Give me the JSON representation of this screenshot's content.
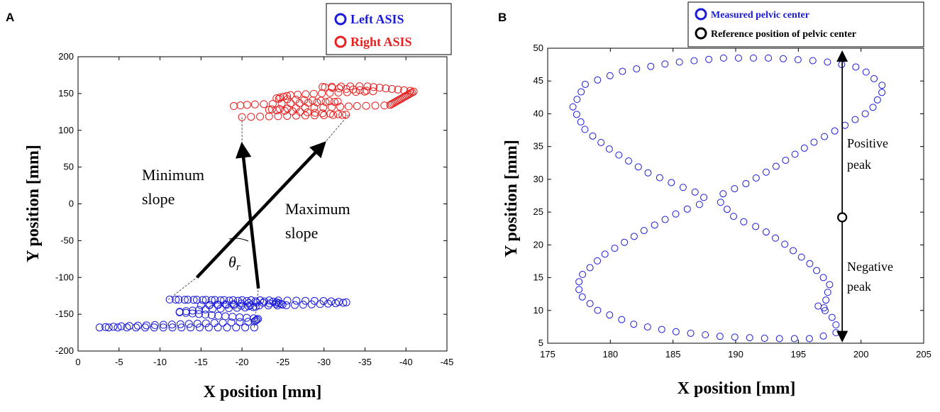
{
  "chart_data": [
    {
      "panel": "A",
      "type": "scatter",
      "xlabel": "X position [mm]",
      "ylabel": "Y position [mm]",
      "xlim": [
        0,
        -45
      ],
      "ylim": [
        -200,
        200
      ],
      "xticks": [
        0,
        -5,
        -10,
        -15,
        -20,
        -25,
        -30,
        -35,
        -40,
        -45
      ],
      "yticks": [
        -200,
        -150,
        -100,
        -50,
        0,
        50,
        100,
        150,
        200
      ],
      "legend": {
        "position": "top-right",
        "entries": [
          {
            "label": "Left ASIS",
            "color": "#1a1adb"
          },
          {
            "label": "Right ASIS",
            "color": "#e82020"
          }
        ]
      },
      "series": [
        {
          "name": "Left ASIS",
          "color": "#1a1adb",
          "path_points": [
            [
              -21.5,
              -168
            ],
            [
              -12,
              -168
            ],
            [
              -6,
              -168
            ],
            [
              -2.5,
              -168
            ],
            [
              -6,
              -166
            ],
            [
              -14,
              -163
            ],
            [
              -21.5,
              -160
            ],
            [
              -22,
              -156
            ],
            [
              -17,
              -152
            ],
            [
              -12,
              -147
            ],
            [
              -16,
              -143
            ],
            [
              -22,
              -140
            ],
            [
              -18,
              -137
            ],
            [
              -15,
              -138
            ],
            [
              -19,
              -136
            ],
            [
              -22,
              -134
            ],
            [
              -25,
              -137
            ],
            [
              -24,
              -133
            ],
            [
              -17,
              -131
            ],
            [
              -11,
              -130
            ],
            [
              -21,
              -131
            ],
            [
              -30,
              -132
            ],
            [
              -33,
              -134
            ],
            [
              -30,
              -136
            ],
            [
              -25,
              -138
            ],
            [
              -21,
              -138
            ]
          ],
          "point_count": 130
        },
        {
          "name": "Right ASIS",
          "color": "#e82020",
          "path_points": [
            [
              -20,
              118
            ],
            [
              -27,
              120
            ],
            [
              -33,
              121
            ],
            [
              -30,
              123
            ],
            [
              -26,
              126
            ],
            [
              -23,
              128
            ],
            [
              -26,
              130
            ],
            [
              -30,
              131
            ],
            [
              -34,
              133
            ],
            [
              -38,
              134
            ],
            [
              -41,
              153
            ],
            [
              -35,
              160
            ],
            [
              -29.5,
              159
            ],
            [
              -33,
              156
            ],
            [
              -36,
              153
            ],
            [
              -31,
              151
            ],
            [
              -26,
              148
            ],
            [
              -24,
              143
            ],
            [
              -28,
              141
            ],
            [
              -32,
              139
            ],
            [
              -27,
              137
            ],
            [
              -21,
              135
            ],
            [
              -19,
              133
            ]
          ],
          "point_count": 110
        }
      ],
      "annotations": [
        {
          "text": "Minimum slope",
          "lines": [
            "Minimum",
            "slope"
          ]
        },
        {
          "text": "Maximum slope",
          "lines": [
            "Maximum",
            "slope"
          ]
        },
        {
          "text": "θr",
          "symbol": "θ",
          "subscript": "r"
        }
      ],
      "arrows": [
        {
          "name": "minimum-slope-arrow",
          "from": [
            -22,
            -115
          ],
          "to": [
            -20,
            80
          ]
        },
        {
          "name": "maximum-slope-arrow",
          "from": [
            -14.5,
            -100
          ],
          "to": [
            -30,
            82
          ]
        }
      ],
      "dashed_lines": [
        [
          [
            -11,
            -130
          ],
          [
            -14.5,
            -100
          ]
        ],
        [
          [
            -21.5,
            -168
          ],
          [
            -22,
            -115
          ]
        ],
        [
          [
            -20,
            118
          ],
          [
            -20,
            80
          ]
        ],
        [
          [
            -33,
            121
          ],
          [
            -30,
            82
          ]
        ]
      ]
    },
    {
      "panel": "B",
      "type": "scatter",
      "xlabel": "X position [mm]",
      "ylabel": "Y position [mm]",
      "xlim": [
        175,
        205
      ],
      "ylim": [
        5,
        50
      ],
      "xticks": [
        175,
        180,
        185,
        190,
        195,
        200,
        205
      ],
      "yticks": [
        5,
        10,
        15,
        20,
        25,
        30,
        35,
        40,
        45,
        50
      ],
      "legend": {
        "position": "top-right",
        "entries": [
          {
            "label": "Measured pelvic center",
            "color": "#1a1adb"
          },
          {
            "label": "Reference position of pelvic center",
            "color": "#000000"
          }
        ]
      },
      "series": [
        {
          "name": "Measured pelvic center",
          "color": "#1a1adb",
          "path_points": [
            [
              189,
              27.8
            ],
            [
              191,
              29.5
            ],
            [
              193.5,
              32.3
            ],
            [
              196,
              35.4
            ],
            [
              198.5,
              38
            ],
            [
              200.8,
              40.5
            ],
            [
              201.9,
              44
            ],
            [
              200,
              47
            ],
            [
              197,
              48
            ],
            [
              193,
              48.5
            ],
            [
              189,
              48.5
            ],
            [
              185,
              47.8
            ],
            [
              181,
              46.5
            ],
            [
              178,
              44.5
            ],
            [
              177,
              41
            ],
            [
              178,
              37.5
            ],
            [
              180,
              34.5
            ],
            [
              183,
              31
            ],
            [
              185.5,
              29
            ],
            [
              187.5,
              27.5
            ],
            [
              187.3,
              26.3
            ],
            [
              185.5,
              25
            ],
            [
              182.5,
              22
            ],
            [
              179.5,
              18.5
            ],
            [
              177.5,
              15
            ],
            [
              177.5,
              12.5
            ],
            [
              179,
              10
            ],
            [
              182,
              7.8
            ],
            [
              185,
              6.8
            ],
            [
              189,
              6
            ],
            [
              193,
              5.7
            ],
            [
              196,
              5.7
            ],
            [
              198,
              6.5
            ],
            [
              198,
              8
            ],
            [
              197.5,
              9.5
            ],
            [
              196.5,
              10.8
            ],
            [
              197,
              10
            ],
            [
              197.5,
              14
            ],
            [
              196,
              17
            ],
            [
              194,
              20
            ],
            [
              192,
              22.5
            ],
            [
              190,
              24
            ],
            [
              188.8,
              26.5
            ]
          ],
          "point_count": 115
        },
        {
          "name": "Reference position of pelvic center",
          "color": "#000000",
          "points": [
            [
              198.5,
              24.2
            ]
          ]
        }
      ],
      "annotations": [
        {
          "text": "Positive peak",
          "lines": [
            "Positive",
            "peak"
          ]
        },
        {
          "text": "Negative peak",
          "lines": [
            "Negative",
            "peak"
          ]
        }
      ],
      "arrows": [
        {
          "name": "positive-peak-arrow",
          "from": [
            198.5,
            24.2
          ],
          "to": [
            198.5,
            49.5
          ]
        },
        {
          "name": "negative-peak-arrow",
          "from": [
            198.5,
            24.2
          ],
          "to": [
            198.5,
            5.3
          ]
        }
      ]
    }
  ]
}
